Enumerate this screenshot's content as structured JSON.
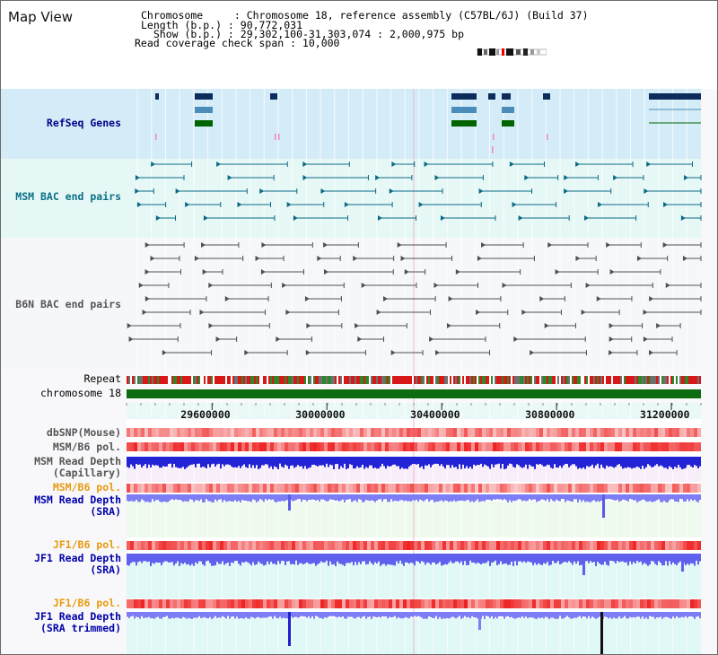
{
  "map_view": {
    "title": "Map View",
    "chromosome_line": "Chromosome     : Chromosome 18, reference assembly (C57BL/6J) (Build 37)",
    "length_line": "Length (b.p.) : 90,772,031",
    "show_line": "  Show (b.p.) : 29,302,100-31,303,074 : 2,000,975 bp",
    "span_line": "Read coverage check span : 10,000"
  },
  "colors": {
    "refseq_bg": "#d4ecf8",
    "msm_bac_bg": "#e6f8f6",
    "b6n_bac_bg": "#f6f7fb",
    "gene_navy": "#0d2c5c",
    "gene_light": "#4b8cb9",
    "gene_green": "#006400",
    "msm_bac": "#0c6a85",
    "b6n_bac": "#505050",
    "chromosome": "#0d6b10",
    "depth_blue": "#2323d6",
    "depth_light": "#7d7df5",
    "pol_red": "#ee2222"
  },
  "tracks": {
    "refseq": {
      "label": "RefSeq Genes",
      "color": "#000088"
    },
    "msm_bac": {
      "label": "MSM BAC end pairs",
      "color": "#0a6f85"
    },
    "b6n_bac": {
      "label": "B6N BAC end pairs",
      "color": "#555555"
    },
    "repeat": {
      "label": "Repeat",
      "color": "#000000"
    },
    "chromosome": {
      "label": "chromosome 18",
      "color": "#000000"
    },
    "dbsnp": {
      "label": "dbSNP(Mouse)",
      "color": "#555555"
    },
    "msm_b6_pol_1": {
      "label": "MSM/B6 pol.",
      "color": "#555555"
    },
    "msm_depth_cap": {
      "label": "MSM Read Depth\n(Capillary)",
      "color": "#555555"
    },
    "msm_b6_pol_2": {
      "label": "MSM/B6 pol.",
      "color": "#e89a10"
    },
    "msm_depth_sra": {
      "label": "MSM Read Depth\n(SRA)",
      "color": "#0000aa"
    },
    "jf1_b6_pol_1": {
      "label": "JF1/B6 pol.",
      "color": "#e89a10"
    },
    "jf1_depth_sra": {
      "label": "JF1 Read Depth\n(SRA)",
      "color": "#0000aa"
    },
    "jf1_b6_pol_2": {
      "label": "JF1/B6 pol.",
      "color": "#e89a10"
    },
    "jf1_depth_trim": {
      "label": "JF1 Read Depth\n(SRA trimmed)",
      "color": "#0000aa"
    }
  },
  "axis": {
    "range": [
      29302100,
      31303074
    ],
    "ticks": [
      "29600000",
      "30000000",
      "30400000",
      "30800000",
      "31200000"
    ]
  }
}
